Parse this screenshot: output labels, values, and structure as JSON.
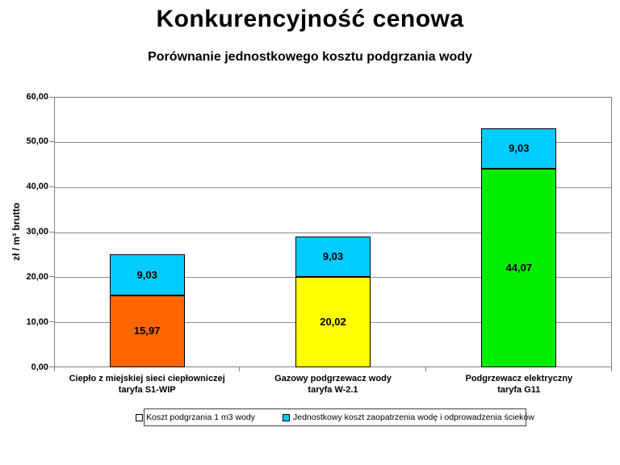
{
  "chart_data": {
    "type": "bar",
    "stacked": true,
    "title": "Konkurencyjność cenowa",
    "subtitle": "Porównanie jednostkowego kosztu podgrzania wody",
    "ylabel": "zł / m³ brutto",
    "xlabel": "",
    "ylim": [
      0,
      60
    ],
    "ytick_step": 10,
    "ytick_labels": [
      "0,00",
      "10,00",
      "20,00",
      "30,00",
      "40,00",
      "50,00",
      "60,00"
    ],
    "grid": true,
    "legend_position": "bottom",
    "categories": [
      [
        "Ciepło z miejskiej sieci ciepłowniczej",
        "taryfa S1-WIP"
      ],
      [
        "Gazowy podgrzewacz wody",
        "taryfa W-2.1"
      ],
      [
        "Podgrzewacz elektryczny",
        "taryfa G11"
      ]
    ],
    "series": [
      {
        "name": "Koszt podgrzania 1 m3 wody",
        "values": [
          15.97,
          20.02,
          44.07
        ],
        "labels": [
          "15,97",
          "20,02",
          "44,07"
        ],
        "colors": [
          "#FF6600",
          "#FFFF00",
          "#00EE00"
        ],
        "legend_marker_color": "#FFFFFF"
      },
      {
        "name": "Jednostkowy koszt zaopatrzenia wodę i odprowadzenia ścieków",
        "values": [
          9.03,
          9.03,
          9.03
        ],
        "labels": [
          "9,03",
          "9,03",
          "9,03"
        ],
        "colors": [
          "#00CCFF",
          "#00CCFF",
          "#00CCFF"
        ],
        "legend_marker_color": "#00CCFF"
      }
    ],
    "colors": {
      "grid": "#8c8c8c",
      "axis": "#808080",
      "text": "#000000",
      "background": "#ffffff"
    }
  }
}
